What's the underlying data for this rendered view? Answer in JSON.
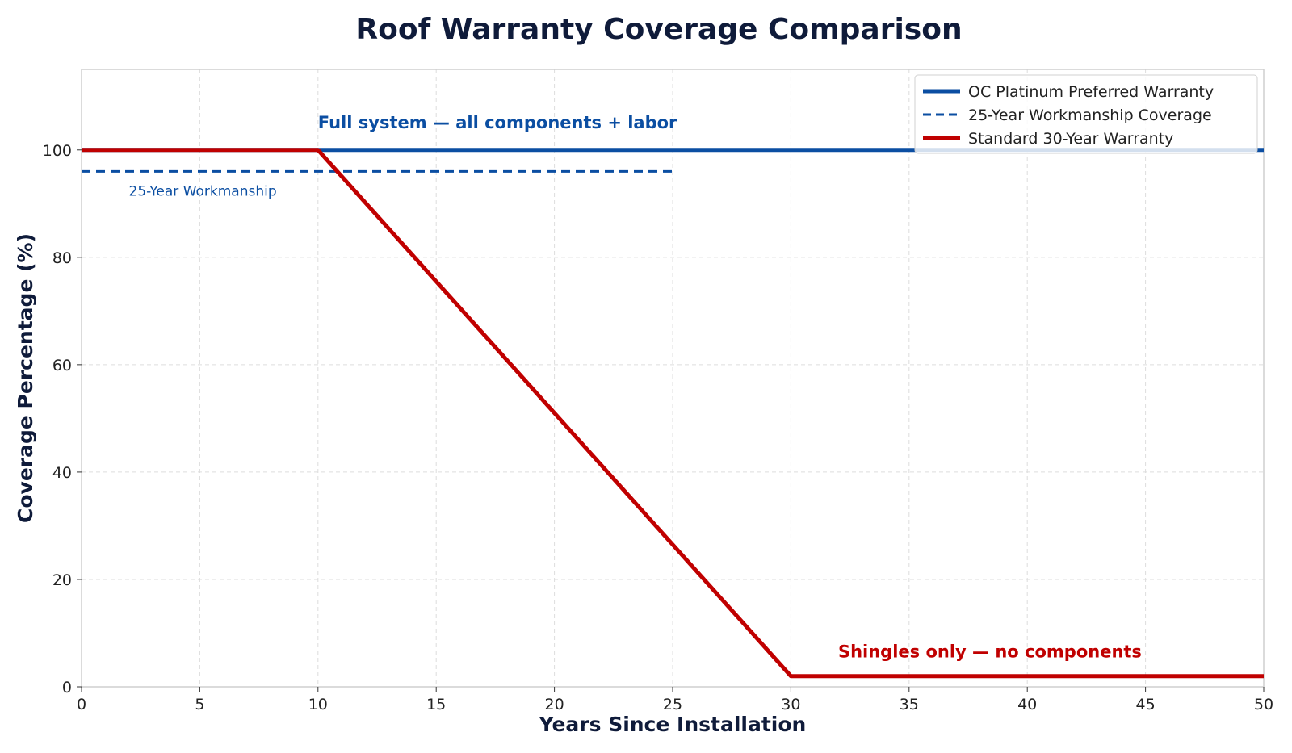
{
  "chart_data": {
    "type": "line",
    "title": "Roof Warranty Coverage Comparison",
    "xlabel": "Years Since Installation",
    "ylabel": "Coverage Percentage (%)",
    "xlim": [
      0,
      50
    ],
    "ylim": [
      0,
      115
    ],
    "x_ticks": [
      0,
      5,
      10,
      15,
      20,
      25,
      30,
      35,
      40,
      45,
      50
    ],
    "y_ticks": [
      0,
      20,
      40,
      60,
      80,
      100
    ],
    "grid": true,
    "legend_position": "top-right",
    "series": [
      {
        "name": "OC Platinum Preferred Warranty",
        "color": "#0b4ea2",
        "style": "solid",
        "x": [
          0,
          50
        ],
        "y": [
          100,
          100
        ]
      },
      {
        "name": "25-Year Workmanship Coverage",
        "color": "#0b4ea2",
        "style": "dashed",
        "x": [
          0,
          25
        ],
        "y": [
          96,
          96
        ]
      },
      {
        "name": "Standard 30-Year Warranty",
        "color": "#c00000",
        "style": "solid",
        "x": [
          0,
          10,
          30,
          50
        ],
        "y": [
          100,
          100,
          2,
          2
        ]
      }
    ],
    "annotations": [
      {
        "text": "Full system — all components + labor",
        "x": 10,
        "y": 104,
        "color": "#0b4ea2",
        "weight": "bold"
      },
      {
        "text": "25-Year Workmanship",
        "x": 2,
        "y": 91.5,
        "color": "#0b4ea2",
        "weight": "normal"
      },
      {
        "text": "Shingles only — no components",
        "x": 32,
        "y": 5.5,
        "color": "#c00000",
        "weight": "bold"
      }
    ]
  }
}
